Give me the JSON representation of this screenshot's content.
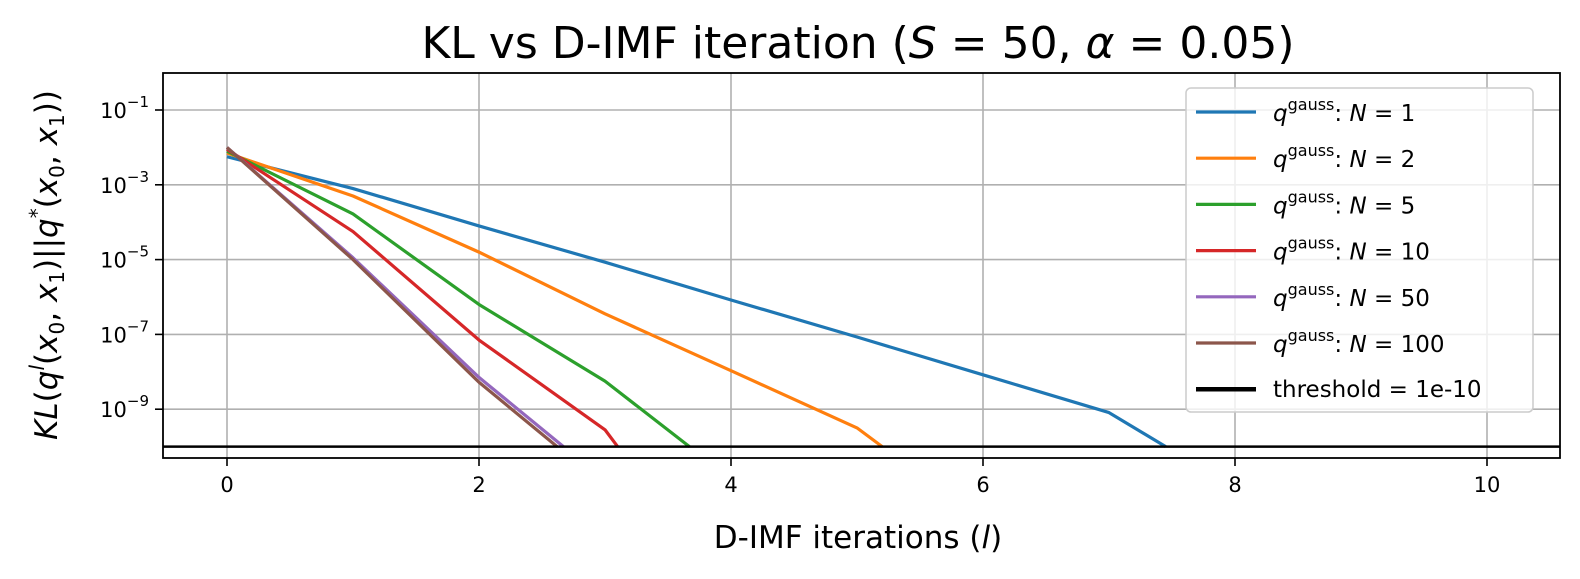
{
  "chart_data": {
    "type": "line",
    "title": "KL vs D-IMF iteration (S = 50, α = 0.05)",
    "title_parts": {
      "prefix": "KL vs D-IMF iteration (",
      "S": "S",
      "eq1": " = 50, ",
      "alpha": "α",
      "eq2": " = 0.05)"
    },
    "xlabel": "D-IMF iterations (l)",
    "xlabel_parts": {
      "prefix": "D-IMF iterations (",
      "var": "l",
      "suffix": ")"
    },
    "ylabel": "KL(q^l(x0, x1)||q*(x0, x1))",
    "x_scale": "linear",
    "y_scale": "log",
    "xlim": [
      -0.5,
      10.5
    ],
    "ylim_log10": [
      0,
      -10.3
    ],
    "x_ticks": [
      0,
      2,
      4,
      6,
      8,
      10
    ],
    "x_tick_labels": [
      "0",
      "2",
      "4",
      "6",
      "8",
      "10"
    ],
    "y_ticks_log10": [
      -1,
      -3,
      -5,
      -7,
      -9
    ],
    "y_tick_labels": [
      {
        "base": "10",
        "exp": "−1"
      },
      {
        "base": "10",
        "exp": "−3"
      },
      {
        "base": "10",
        "exp": "−5"
      },
      {
        "base": "10",
        "exp": "−7"
      },
      {
        "base": "10",
        "exp": "−9"
      }
    ],
    "grid": true,
    "legend_position": "upper right",
    "series": [
      {
        "name": "q^gauss: N = 1",
        "N": "1",
        "color": "#1f77b4",
        "x": [
          0,
          1,
          2,
          3,
          4,
          5,
          6,
          7,
          7.45
        ],
        "log10_y": [
          -2.25,
          -3.1,
          -4.1,
          -5.07,
          -6.08,
          -7.07,
          -8.08,
          -9.09,
          -10.0
        ]
      },
      {
        "name": "q^gauss: N = 2",
        "N": "2",
        "color": "#ff7f0e",
        "x": [
          0,
          1,
          2,
          3,
          4,
          5,
          5.2
        ],
        "log10_y": [
          -2.15,
          -3.3,
          -4.8,
          -6.45,
          -7.97,
          -9.5,
          -10.0
        ]
      },
      {
        "name": "q^gauss: N = 5",
        "N": "5",
        "color": "#2ca02c",
        "x": [
          0,
          1,
          2,
          3,
          3.67
        ],
        "log10_y": [
          -2.1,
          -3.78,
          -6.2,
          -8.25,
          -10.0
        ]
      },
      {
        "name": "q^gauss: N = 10",
        "N": "10",
        "color": "#d62728",
        "x": [
          0,
          1,
          2,
          3,
          3.1
        ],
        "log10_y": [
          -2.05,
          -4.25,
          -7.15,
          -9.55,
          -10.0
        ]
      },
      {
        "name": "q^gauss: N = 50",
        "N": "50",
        "color": "#9467bd",
        "x": [
          0,
          1,
          2,
          2.67
        ],
        "log10_y": [
          -2.0,
          -4.95,
          -8.15,
          -10.0
        ]
      },
      {
        "name": "q^gauss: N = 100",
        "N": "100",
        "color": "#8c564b",
        "x": [
          0,
          1,
          2,
          2.62
        ],
        "log10_y": [
          -2.0,
          -5.0,
          -8.28,
          -10.0
        ]
      }
    ],
    "threshold": {
      "name": "threshold = 1e-10",
      "label": "threshold = 1e-10",
      "log10_y": -10,
      "color": "#000000"
    },
    "legend_entries": [
      {
        "q": "q",
        "sup": "gauss",
        "rest": ": ",
        "N": "N",
        "eq": " = 1"
      },
      {
        "q": "q",
        "sup": "gauss",
        "rest": ": ",
        "N": "N",
        "eq": " = 2"
      },
      {
        "q": "q",
        "sup": "gauss",
        "rest": ": ",
        "N": "N",
        "eq": " = 5"
      },
      {
        "q": "q",
        "sup": "gauss",
        "rest": ": ",
        "N": "N",
        "eq": " = 10"
      },
      {
        "q": "q",
        "sup": "gauss",
        "rest": ": ",
        "N": "N",
        "eq": " = 50"
      },
      {
        "q": "q",
        "sup": "gauss",
        "rest": ": ",
        "N": "N",
        "eq": " = 100"
      }
    ]
  }
}
